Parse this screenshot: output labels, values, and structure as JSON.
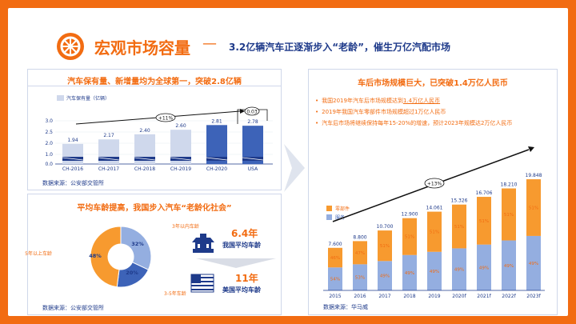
{
  "header": {
    "title": "宏观市场容量",
    "dash": "—",
    "subtitle": "3.2亿辆汽车正逐渐步入“老龄”，催生万亿汽配市场"
  },
  "panel_vehicles": {
    "title": "汽车保有量、新增量均为全球第一，突破2.8亿辆",
    "source": "数据来源：公安部交管所",
    "cagr": "+11%",
    "gap": "0.03"
  },
  "panel_age": {
    "title": "平均车龄提高，我国步入汽车“老龄化社会”",
    "source": "数据来源：公安部交管所",
    "china_age": "6.4年",
    "china_label": "我国平均车龄",
    "us_age": "11年",
    "us_label": "美国平均车龄"
  },
  "panel_aftermarket": {
    "title": "车后市场规模巨大，已突破1.4万亿人民币",
    "bullets": [
      {
        "pre": "我国2019年汽车后市场规模达到",
        "emph": "1.4万亿人民币",
        "post": ""
      },
      {
        "pre": "2019年我国汽车零部件市场规模超过1万亿人民币",
        "emph": "",
        "post": ""
      },
      {
        "pre": "汽车后市场将继续保持每年15-20%的增速，预计2023年规模达2万亿人民币",
        "emph": "",
        "post": ""
      }
    ],
    "source": "数据来源：华马威",
    "cagr": "+13%"
  },
  "colors": {
    "orange": "#f79a2f",
    "blue_light": "#94aee0",
    "navy": "#1e3a8a",
    "accent": "#f26c12"
  },
  "chart_data": [
    {
      "type": "bar",
      "title": "汽车保有量、新增量均为全球第一，突破2.8亿辆",
      "legend": "汽车保有量（亿辆）",
      "categories": [
        "CH-2016",
        "CH-2017",
        "CH-2018",
        "CH-2019",
        "CH-2020",
        "USA"
      ],
      "values": [
        1.94,
        2.17,
        2.4,
        2.6,
        2.81,
        2.78
      ],
      "value_labels": [
        "1.94",
        "2.17",
        "2.40",
        "2.60",
        "2.81",
        "2.78"
      ],
      "yticks": [
        "0.0",
        "1.0",
        "2.0",
        "2.5",
        "3.0"
      ],
      "ylim": [
        0,
        3.0
      ],
      "highlight": [
        "CH-2020",
        "USA"
      ],
      "annotations": [
        "+11%",
        "0.03"
      ]
    },
    {
      "type": "pie",
      "title": "平均车龄提高，我国步入汽车“老龄化社会”",
      "slices": [
        {
          "label": "3年以内车龄",
          "pct_label": "32%",
          "value": 32,
          "color": "#94aee0"
        },
        {
          "label": "3-5年车龄",
          "pct_label": "20%",
          "value": 20,
          "color": "#3d63b8"
        },
        {
          "label": "5年以上车龄",
          "pct_label": "48%",
          "value": 48,
          "color": "#f79a2f"
        }
      ]
    },
    {
      "type": "bar",
      "title": "车后市场规模巨大，已突破1.4万亿人民币",
      "categories": [
        "2015",
        "2016",
        "2017",
        "2018",
        "2019",
        "2020f",
        "2021f",
        "2022f",
        "2023f"
      ],
      "totals": [
        7.6,
        8.8,
        10.7,
        12.9,
        14.061,
        15.326,
        16.706,
        18.21,
        19.848
      ],
      "total_labels": [
        "7.600",
        "8.800",
        "10.700",
        "12.900",
        "14.061",
        "15.326",
        "16.706",
        "18.210",
        "19.848"
      ],
      "series": [
        {
          "name": "零部件",
          "labels": [
            "46%",
            "47%",
            "51%",
            "51%",
            "51%",
            "51%",
            "51%",
            "51%",
            "51%"
          ],
          "share": [
            0.46,
            0.47,
            0.51,
            0.51,
            0.51,
            0.51,
            0.51,
            0.51,
            0.51
          ]
        },
        {
          "name": "服务",
          "labels": [
            "54%",
            "53%",
            "49%",
            "49%",
            "49%",
            "49%",
            "49%",
            "49%",
            "49%"
          ],
          "share": [
            0.54,
            0.53,
            0.49,
            0.49,
            0.49,
            0.49,
            0.49,
            0.49,
            0.49
          ]
        }
      ],
      "ylim": [
        0,
        20
      ],
      "annotation": "+13%"
    }
  ]
}
